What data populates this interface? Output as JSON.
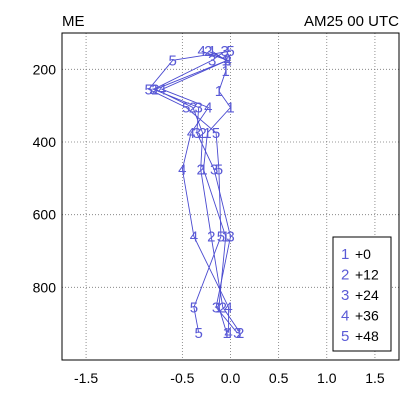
{
  "header": {
    "left": "ME",
    "right": "AM25 00 UTC"
  },
  "chart_data": {
    "type": "line",
    "title": "",
    "xlabel": "",
    "ylabel": "",
    "xlim": [
      -1.75,
      1.75
    ],
    "ylim": [
      100,
      1000
    ],
    "y_inverted": true,
    "x_ticks": [
      "-1.5",
      "-0.5",
      "0.0",
      "0.5",
      "1.0",
      "1.5"
    ],
    "x_tick_values": [
      -1.5,
      -0.5,
      0.0,
      0.5,
      1.0,
      1.5
    ],
    "y_ticks": [
      "200",
      "400",
      "600",
      "800"
    ],
    "y_tick_values": [
      200,
      400,
      600,
      800
    ],
    "grid": true,
    "legend_position": "bottom-right",
    "series": [
      {
        "label": "1",
        "name": "+0",
        "points": [
          [
            -0.19,
            150
          ],
          [
            -0.05,
            175
          ],
          [
            -0.05,
            205
          ],
          [
            -0.12,
            260
          ],
          [
            0.0,
            305
          ],
          [
            -0.24,
            375
          ],
          [
            -0.28,
            475
          ],
          [
            -0.05,
            660
          ],
          [
            -0.12,
            855
          ],
          [
            -0.04,
            925
          ]
        ]
      },
      {
        "label": "2",
        "name": "+12",
        "points": [
          [
            -0.23,
            150
          ],
          [
            -0.03,
            175
          ],
          [
            -0.78,
            255
          ],
          [
            -0.39,
            305
          ],
          [
            -0.29,
            375
          ],
          [
            -0.31,
            475
          ],
          [
            -0.2,
            660
          ],
          [
            -0.08,
            855
          ],
          [
            0.1,
            925
          ]
        ]
      },
      {
        "label": "3",
        "name": "+24",
        "points": [
          [
            -0.06,
            150
          ],
          [
            -0.19,
            175
          ],
          [
            -0.8,
            255
          ],
          [
            -0.33,
            305
          ],
          [
            -0.35,
            375
          ],
          [
            -0.17,
            475
          ],
          [
            0.0,
            660
          ],
          [
            -0.15,
            855
          ],
          [
            0.07,
            925
          ]
        ]
      },
      {
        "label": "4",
        "name": "+36",
        "points": [
          [
            -0.3,
            150
          ],
          [
            -0.03,
            175
          ],
          [
            -0.71,
            255
          ],
          [
            -0.23,
            305
          ],
          [
            -0.41,
            375
          ],
          [
            -0.5,
            475
          ],
          [
            -0.38,
            660
          ],
          [
            -0.02,
            855
          ],
          [
            -0.02,
            925
          ]
        ]
      },
      {
        "label": "5",
        "name": "+48",
        "points": [
          [
            0.0,
            150
          ],
          [
            -0.6,
            175
          ],
          [
            -0.85,
            255
          ],
          [
            -0.46,
            305
          ],
          [
            -0.15,
            375
          ],
          [
            -0.12,
            475
          ],
          [
            -0.1,
            660
          ],
          [
            -0.38,
            855
          ],
          [
            -0.33,
            925
          ]
        ]
      }
    ]
  }
}
